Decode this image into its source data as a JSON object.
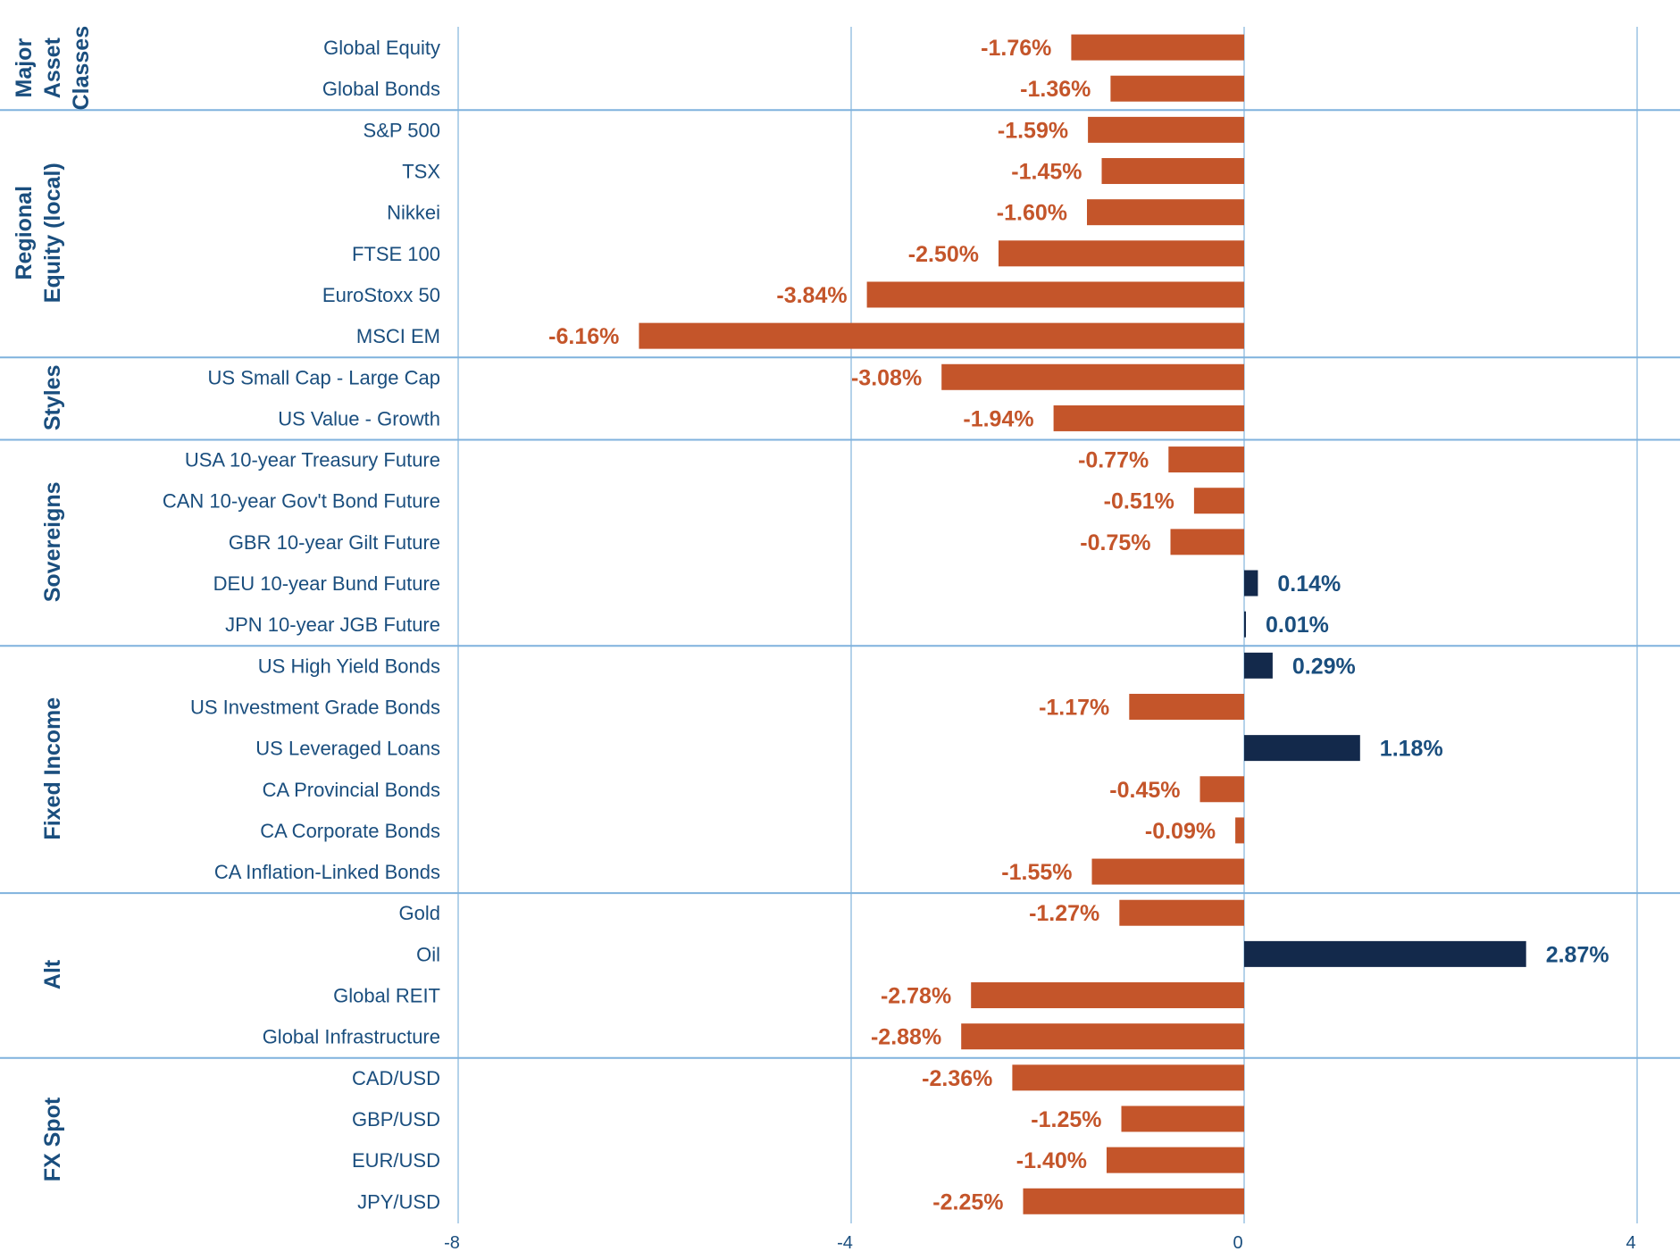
{
  "chart_data": {
    "type": "bar",
    "orientation": "horizontal",
    "xlim": [
      -8,
      4
    ],
    "xticks": [
      "-8",
      "-4",
      "0",
      "4"
    ],
    "value_suffix": "%",
    "colors": {
      "negative": "#c4552a",
      "positive": "#13294b",
      "positive_label": "#1a4e7e",
      "grid": "#9cc3e4",
      "text": "#1a4e7e"
    },
    "groups": [
      {
        "name": "Major Asset Classes",
        "lines": [
          "Major",
          "Asset",
          "Classes"
        ],
        "items": [
          {
            "label": "Global Equity",
            "value": -1.76,
            "display": "-1.76%"
          },
          {
            "label": "Global Bonds",
            "value": -1.36,
            "display": "-1.36%"
          }
        ]
      },
      {
        "name": "Regional Equity (local)",
        "lines": [
          "Regional",
          "Equity (local)"
        ],
        "items": [
          {
            "label": "S&P 500",
            "value": -1.59,
            "display": "-1.59%"
          },
          {
            "label": "TSX",
            "value": -1.45,
            "display": "-1.45%"
          },
          {
            "label": "Nikkei",
            "value": -1.6,
            "display": "-1.60%"
          },
          {
            "label": "FTSE 100",
            "value": -2.5,
            "display": "-2.50%"
          },
          {
            "label": "EuroStoxx 50",
            "value": -3.84,
            "display": "-3.84%"
          },
          {
            "label": "MSCI EM",
            "value": -6.16,
            "display": "-6.16%"
          }
        ]
      },
      {
        "name": "Styles",
        "lines": [
          "Styles"
        ],
        "items": [
          {
            "label": "US Small Cap - Large Cap",
            "value": -3.08,
            "display": "-3.08%"
          },
          {
            "label": "US Value - Growth",
            "value": -1.94,
            "display": "-1.94%"
          }
        ]
      },
      {
        "name": "Sovereigns",
        "lines": [
          "Sovereigns"
        ],
        "items": [
          {
            "label": "USA 10-year Treasury Future",
            "value": -0.77,
            "display": "-0.77%"
          },
          {
            "label": "CAN 10-year Gov't Bond Future",
            "value": -0.51,
            "display": "-0.51%"
          },
          {
            "label": "GBR 10-year Gilt Future",
            "value": -0.75,
            "display": "-0.75%"
          },
          {
            "label": "DEU 10-year Bund Future",
            "value": 0.14,
            "display": "0.14%"
          },
          {
            "label": "JPN 10-year JGB Future",
            "value": 0.01,
            "display": "0.01%"
          }
        ]
      },
      {
        "name": "Fixed Income",
        "lines": [
          "Fixed Income"
        ],
        "items": [
          {
            "label": "US High Yield Bonds",
            "value": 0.29,
            "display": "0.29%"
          },
          {
            "label": "US Investment Grade Bonds",
            "value": -1.17,
            "display": "-1.17%"
          },
          {
            "label": "US Leveraged Loans",
            "value": 1.18,
            "display": "1.18%"
          },
          {
            "label": "CA Provincial Bonds",
            "value": -0.45,
            "display": "-0.45%"
          },
          {
            "label": "CA Corporate Bonds",
            "value": -0.09,
            "display": "-0.09%"
          },
          {
            "label": "CA Inflation-Linked Bonds",
            "value": -1.55,
            "display": "-1.55%"
          }
        ]
      },
      {
        "name": "Alt",
        "lines": [
          "Alt"
        ],
        "items": [
          {
            "label": "Gold",
            "value": -1.27,
            "display": "-1.27%"
          },
          {
            "label": "Oil",
            "value": 2.87,
            "display": "2.87%"
          },
          {
            "label": "Global REIT",
            "value": -2.78,
            "display": "-2.78%"
          },
          {
            "label": "Global Infrastructure",
            "value": -2.88,
            "display": "-2.88%"
          }
        ]
      },
      {
        "name": "FX Spot",
        "lines": [
          "FX Spot"
        ],
        "items": [
          {
            "label": "CAD/USD",
            "value": -2.36,
            "display": "-2.36%"
          },
          {
            "label": "GBP/USD",
            "value": -1.25,
            "display": "-1.25%"
          },
          {
            "label": "EUR/USD",
            "value": -1.4,
            "display": "-1.40%"
          },
          {
            "label": "JPY/USD",
            "value": -2.25,
            "display": "-2.25%"
          }
        ]
      }
    ]
  }
}
